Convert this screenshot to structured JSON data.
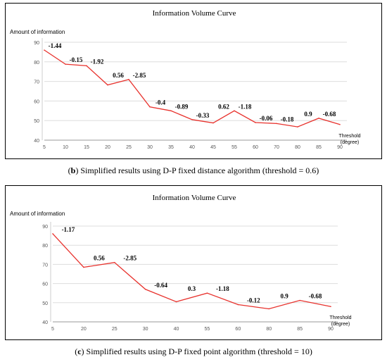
{
  "chart_data": [
    {
      "type": "line",
      "title": "Information Volume Curve",
      "ylabel": "Amount of information",
      "xlabel": "Threshold (degree)",
      "xlabel_lines": [
        "Threshold",
        "(degree)"
      ],
      "categories": [
        "5",
        "10",
        "15",
        "20",
        "25",
        "30",
        "35",
        "40",
        "45",
        "55",
        "60",
        "70",
        "80",
        "85",
        "90"
      ],
      "values": [
        86,
        78.8,
        78,
        68.2,
        71,
        57,
        55,
        50.5,
        48.8,
        55,
        49,
        48.5,
        46.8,
        51.2,
        48
      ],
      "labels": [
        "-1.44",
        "-0.15",
        "-1.92",
        "0.56",
        "-2.85",
        "-0.4",
        "-0.89",
        "-0.33",
        "0.62",
        "-1.18",
        "-0.06",
        "-0.18",
        "0.9",
        "-0.68"
      ],
      "yticks": [
        40,
        50,
        60,
        70,
        80,
        90
      ],
      "ylim": [
        40,
        90
      ],
      "grid": true,
      "line_color": "#e8322d"
    },
    {
      "type": "line",
      "title": "Information Volume Curve",
      "ylabel": "Amount of information",
      "xlabel": "Threshold (degree)",
      "xlabel_lines": [
        "Threshold",
        "(degree)"
      ],
      "categories": [
        "5",
        "20",
        "25",
        "30",
        "40",
        "55",
        "60",
        "80",
        "85",
        "90"
      ],
      "values": [
        86,
        68.5,
        71,
        57,
        50.5,
        55,
        49,
        46.8,
        51.2,
        48
      ],
      "labels": [
        "-1.17",
        "0.56",
        "-2.85",
        "-0.64",
        "0.3",
        "-1.18",
        "-0.12",
        "0.9",
        "-0.68"
      ],
      "yticks": [
        40,
        50,
        60,
        70,
        80,
        90
      ],
      "ylim": [
        40,
        90
      ],
      "grid": true,
      "line_color": "#e8322d"
    }
  ],
  "captions": {
    "b": {
      "tag": "(b)",
      "text": "Simplified results using D-P fixed distance algorithm (threshold = 0.6)"
    },
    "c": {
      "tag": "(c)",
      "text": "Simplified results using D-P fixed point algorithm (threshold = 10)"
    }
  }
}
